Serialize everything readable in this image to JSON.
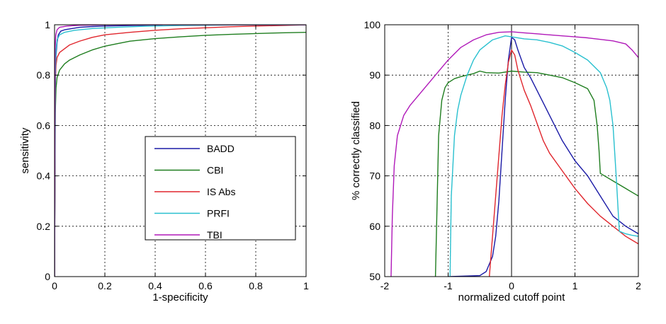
{
  "figure": {
    "background": "#ffffff"
  },
  "chart_data": [
    {
      "type": "line",
      "title": "",
      "xlabel": "1-specificity",
      "ylabel": "sensitivity",
      "xlim": [
        0,
        1
      ],
      "ylim": [
        0,
        1
      ],
      "xticks": [
        "0",
        "0.2",
        "0.4",
        "0.6",
        "0.8",
        "1"
      ],
      "yticks": [
        "0",
        "0.2",
        "0.4",
        "0.6",
        "0.8",
        "1"
      ],
      "grid": true,
      "legend_placement": "center-right",
      "series": [
        {
          "name": "BADD",
          "color": "#1a1aa6",
          "x": [
            0,
            0.003,
            0.006,
            0.01,
            0.015,
            0.025,
            0.04,
            0.07,
            0.1,
            0.15,
            0.2,
            0.3,
            0.4,
            0.43
          ],
          "y": [
            0,
            0.75,
            0.88,
            0.93,
            0.96,
            0.975,
            0.98,
            0.985,
            0.99,
            0.993,
            0.995,
            0.997,
            0.999,
            1.0
          ]
        },
        {
          "name": "CBI",
          "color": "#1e7d1e",
          "x": [
            0,
            0.003,
            0.006,
            0.01,
            0.02,
            0.04,
            0.06,
            0.1,
            0.15,
            0.2,
            0.25,
            0.3,
            0.4,
            0.5,
            0.6,
            0.7,
            0.8,
            0.9,
            1.0
          ],
          "y": [
            0,
            0.65,
            0.75,
            0.79,
            0.82,
            0.845,
            0.86,
            0.88,
            0.9,
            0.915,
            0.925,
            0.935,
            0.945,
            0.952,
            0.958,
            0.962,
            0.965,
            0.968,
            0.97
          ]
        },
        {
          "name": "IS Abs",
          "color": "#e0262d",
          "x": [
            0,
            0.003,
            0.006,
            0.01,
            0.02,
            0.04,
            0.06,
            0.1,
            0.15,
            0.2,
            0.3,
            0.4,
            0.5,
            0.6,
            0.7,
            0.8,
            0.9,
            1.0
          ],
          "y": [
            0,
            0.78,
            0.84,
            0.87,
            0.89,
            0.905,
            0.92,
            0.935,
            0.95,
            0.96,
            0.97,
            0.978,
            0.984,
            0.988,
            0.992,
            0.995,
            0.997,
            1.0
          ]
        },
        {
          "name": "PRFI",
          "color": "#29c0cf",
          "x": [
            0,
            0.003,
            0.006,
            0.01,
            0.02,
            0.04,
            0.08,
            0.15,
            0.25,
            0.35,
            0.5,
            0.7,
            1.0
          ],
          "y": [
            0,
            0.8,
            0.9,
            0.94,
            0.96,
            0.97,
            0.978,
            0.985,
            0.99,
            0.994,
            0.997,
            0.999,
            1.0
          ]
        },
        {
          "name": "TBI",
          "color": "#b019b9",
          "x": [
            0,
            0.002,
            0.005,
            0.01,
            0.02,
            0.05,
            0.1,
            0.2,
            1.0
          ],
          "y": [
            0,
            0.9,
            0.96,
            0.98,
            0.99,
            0.995,
            0.998,
            1.0,
            1.0
          ]
        }
      ]
    },
    {
      "type": "line",
      "title": "",
      "xlabel": "normalized cutoff point",
      "ylabel": "% correctly classified",
      "xlim": [
        -2,
        2
      ],
      "ylim": [
        50,
        100
      ],
      "xticks": [
        "-2",
        "-1",
        "0",
        "1",
        "2"
      ],
      "yticks": [
        "50",
        "60",
        "70",
        "80",
        "90",
        "100"
      ],
      "grid": true,
      "vertical_line_at_x": 0,
      "series": [
        {
          "name": "BADD",
          "color": "#1a1aa6",
          "x": [
            -1.0,
            -0.5,
            -0.4,
            -0.3,
            -0.25,
            -0.2,
            -0.15,
            -0.1,
            -0.05,
            0.0,
            0.05,
            0.1,
            0.2,
            0.3,
            0.4,
            0.5,
            0.6,
            0.8,
            1.0,
            1.2,
            1.4,
            1.6,
            1.8,
            2.0
          ],
          "y": [
            50,
            50.2,
            51,
            54,
            58,
            65,
            75,
            85,
            93,
            97.5,
            97,
            95,
            91.5,
            89.5,
            87,
            84.5,
            82,
            77,
            73,
            70,
            66,
            62,
            60,
            58.5
          ]
        },
        {
          "name": "CBI",
          "color": "#1e7d1e",
          "x": [
            -1.2,
            -1.15,
            -1.1,
            -1.05,
            -1.0,
            -0.9,
            -0.8,
            -0.6,
            -0.5,
            -0.4,
            -0.2,
            0.0,
            0.2,
            0.4,
            0.6,
            0.8,
            1.0,
            1.2,
            1.3,
            1.35,
            1.38,
            1.4,
            1.6,
            1.8,
            2.0
          ],
          "y": [
            50,
            78,
            85,
            87.5,
            88.5,
            89.3,
            89.7,
            90.3,
            90.8,
            90.5,
            90.4,
            90.8,
            90.6,
            90.5,
            90.0,
            89.5,
            88.5,
            87.3,
            85,
            80,
            75,
            70.5,
            69,
            67.5,
            66
          ]
        },
        {
          "name": "IS Abs",
          "color": "#e0262d",
          "x": [
            -0.35,
            -0.3,
            -0.25,
            -0.2,
            -0.15,
            -0.1,
            -0.05,
            0.0,
            0.05,
            0.1,
            0.2,
            0.3,
            0.4,
            0.5,
            0.6,
            0.8,
            1.0,
            1.2,
            1.4,
            1.6,
            1.8,
            2.0
          ],
          "y": [
            50,
            58,
            66,
            74,
            82,
            88,
            92.5,
            95,
            94,
            91,
            87,
            84,
            80.5,
            77,
            74.5,
            71,
            67.5,
            64.5,
            62,
            60,
            58,
            56.5
          ]
        },
        {
          "name": "PRFI",
          "color": "#29c0cf",
          "x": [
            -0.97,
            -0.95,
            -0.9,
            -0.85,
            -0.8,
            -0.7,
            -0.6,
            -0.5,
            -0.3,
            -0.1,
            0.0,
            0.2,
            0.4,
            0.6,
            0.8,
            1.0,
            1.2,
            1.4,
            1.5,
            1.55,
            1.6,
            1.65,
            1.7,
            1.8,
            1.9,
            2.0
          ],
          "y": [
            50,
            66,
            78,
            83,
            86,
            90,
            93,
            95,
            97,
            97.8,
            97.6,
            97.2,
            97,
            96.5,
            95.8,
            94.5,
            93,
            90.5,
            87.5,
            85,
            80,
            70,
            59,
            58.5,
            58.2,
            58
          ]
        },
        {
          "name": "TBI",
          "color": "#b019b9",
          "x": [
            -1.9,
            -1.88,
            -1.85,
            -1.8,
            -1.7,
            -1.6,
            -1.4,
            -1.2,
            -1.0,
            -0.8,
            -0.6,
            -0.4,
            -0.2,
            0.0,
            0.2,
            0.5,
            0.8,
            1.0,
            1.2,
            1.4,
            1.6,
            1.8,
            1.9,
            2.0
          ],
          "y": [
            50,
            62,
            72,
            78,
            82,
            84,
            87,
            90,
            93,
            95.5,
            97,
            98,
            98.5,
            98.6,
            98.4,
            98.1,
            97.8,
            97.6,
            97.4,
            97.1,
            96.8,
            96.2,
            95,
            93.5
          ]
        }
      ]
    }
  ]
}
